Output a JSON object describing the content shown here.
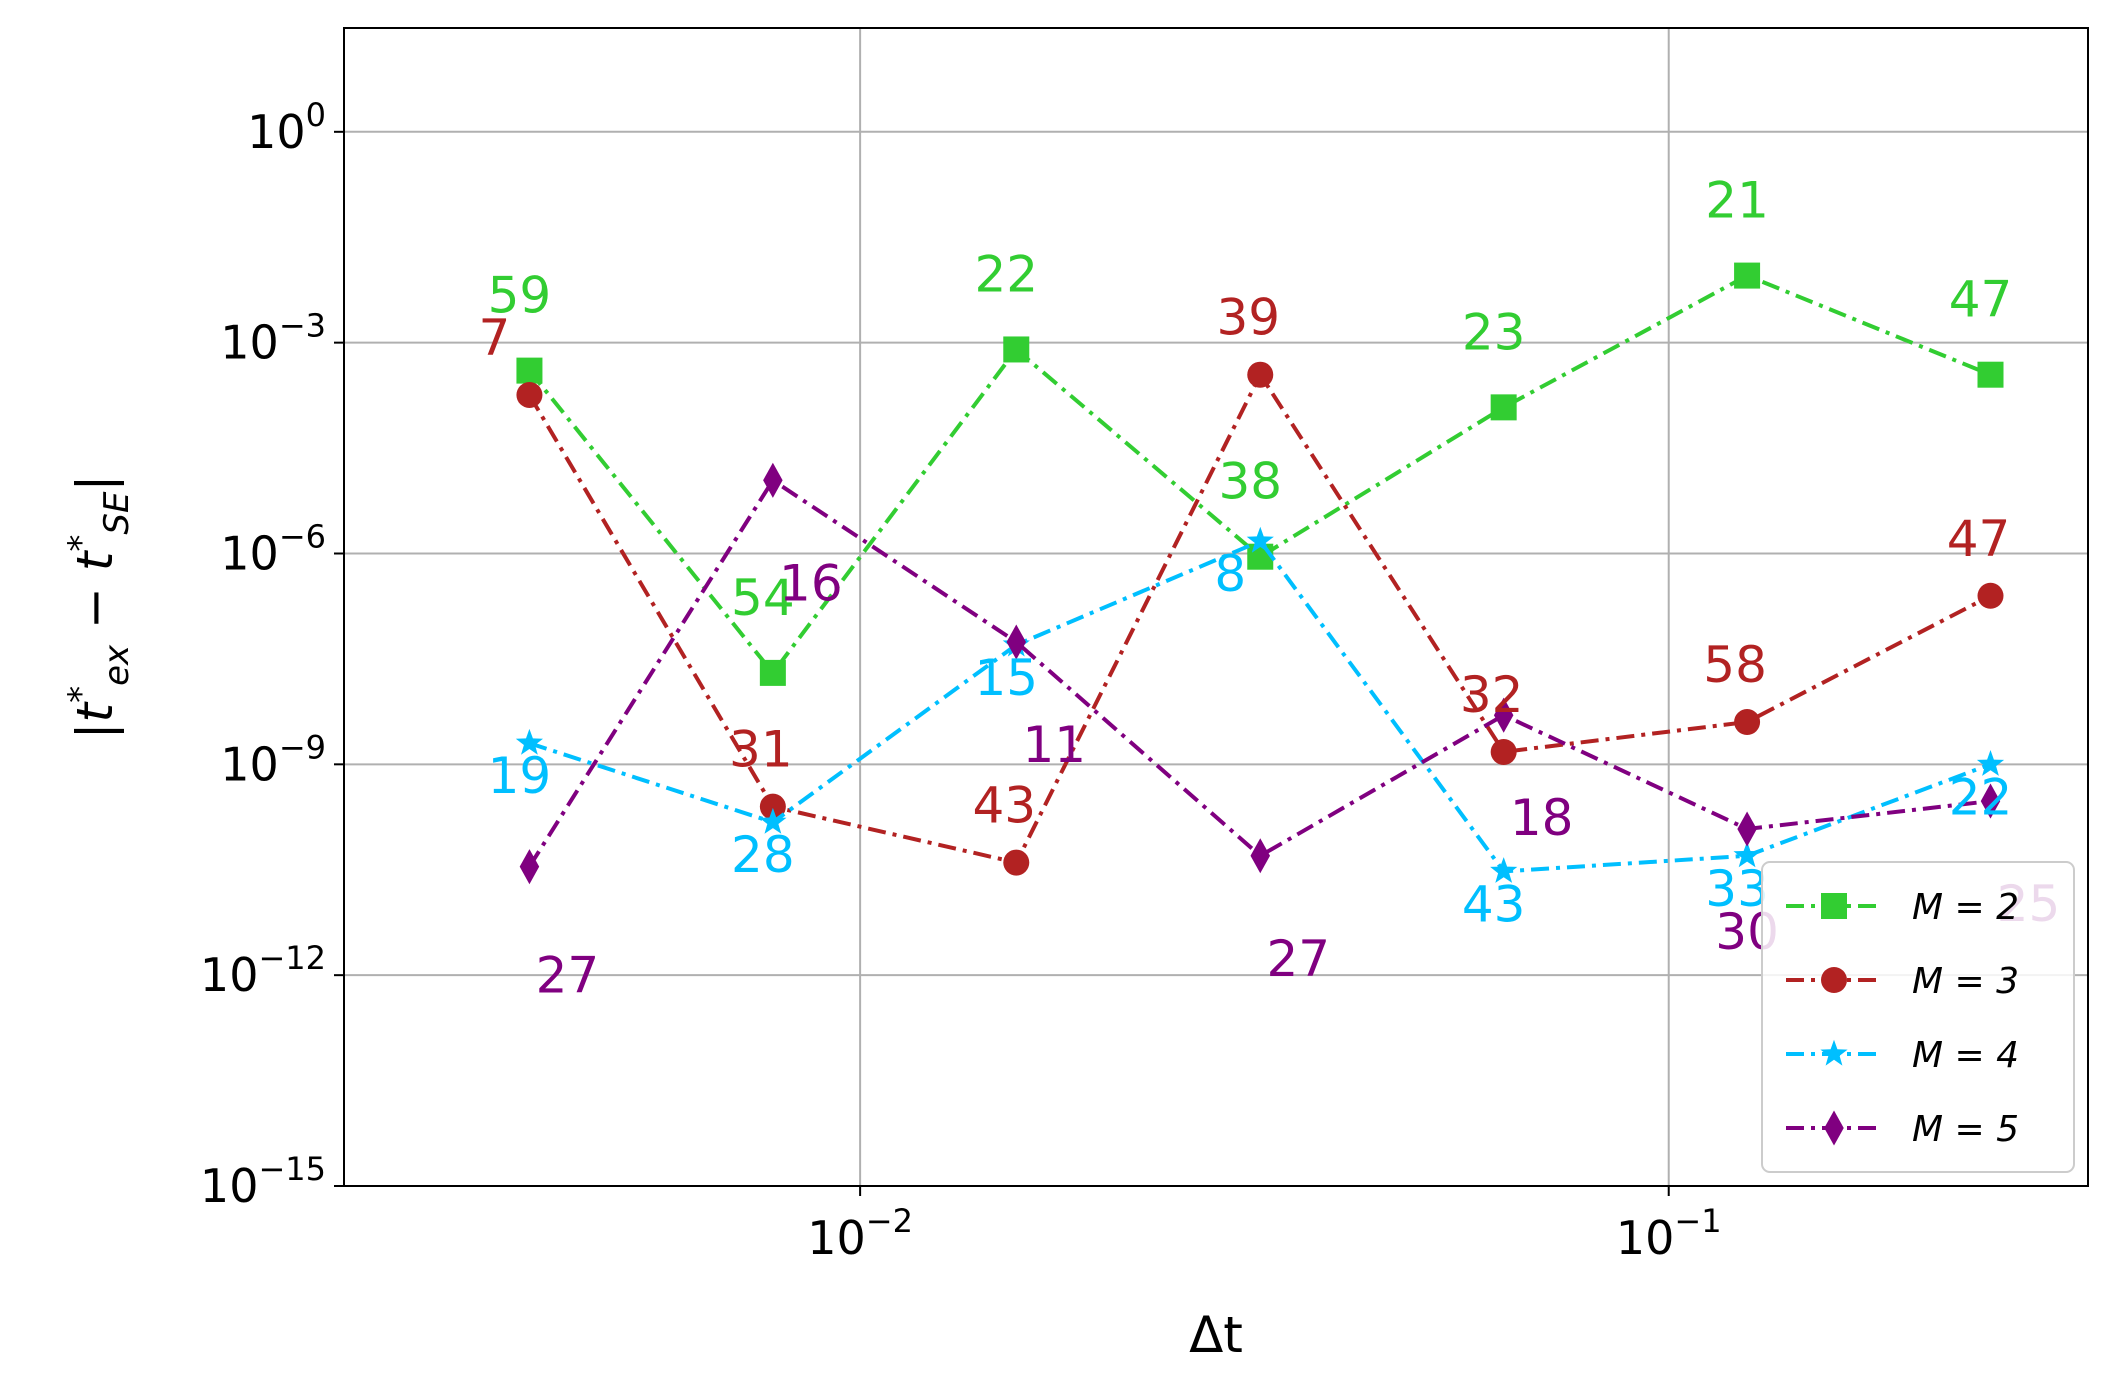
{
  "chart_data": {
    "type": "line",
    "xscale": "log",
    "yscale": "log",
    "xlabel": "Δt",
    "ylabel": "|t*ex − t*SE|",
    "xlim": [
      0.0023,
      0.33
    ],
    "ylim": [
      1e-15,
      30
    ],
    "grid": true,
    "legend_position": "bottom-right",
    "x_ticks": [
      {
        "value": 0.01,
        "base": "10",
        "exp": "−2"
      },
      {
        "value": 0.1,
        "base": "10",
        "exp": "−1"
      }
    ],
    "y_ticks": [
      {
        "value": 1,
        "base": "10",
        "exp": "0"
      },
      {
        "value": 0.001,
        "base": "10",
        "exp": "−3"
      },
      {
        "value": 1e-06,
        "base": "10",
        "exp": "−6"
      },
      {
        "value": 1e-09,
        "base": "10",
        "exp": "−9"
      },
      {
        "value": 1e-12,
        "base": "10",
        "exp": "−12"
      },
      {
        "value": 1e-15,
        "base": "10",
        "exp": "−15"
      }
    ],
    "x": [
      0.0039,
      0.0078,
      0.0156,
      0.03125,
      0.0625,
      0.125,
      0.25
    ],
    "series": [
      {
        "name": "M = 2",
        "color": "#32cd32",
        "marker": "square",
        "dash": "dashdot",
        "values": [
          0.0004,
          2e-08,
          0.0008,
          9e-07,
          0.00012,
          0.009,
          0.00035
        ],
        "labels": [
          "59",
          "54",
          "22",
          "38",
          "23",
          "21",
          "47"
        ],
        "label_offsets": [
          [
            -10,
            -58
          ],
          [
            -10,
            -58
          ],
          [
            -10,
            -58
          ],
          [
            -10,
            -58
          ],
          [
            -10,
            -58
          ],
          [
            -10,
            -58
          ],
          [
            -10,
            -58
          ]
        ]
      },
      {
        "name": "M = 3",
        "color": "#b22222",
        "marker": "circle",
        "dash": "dashdot",
        "values": [
          0.00018,
          2.5e-10,
          4e-11,
          0.00035,
          1.5e-09,
          4e-09,
          2.5e-07
        ],
        "labels": [
          "7",
          "31",
          "43",
          "39",
          "32",
          "58",
          "47"
        ],
        "labels_dy": [],
        "label_offsets": [
          [
            -35,
            -40
          ],
          [
            -12,
            -40
          ],
          [
            -12,
            -40
          ],
          [
            -12,
            -40
          ],
          [
            -12,
            -40
          ],
          [
            -12,
            -40
          ],
          [
            -12,
            -40
          ]
        ]
      },
      {
        "name": "M = 4",
        "color": "#00bfff",
        "marker": "star",
        "dash": "dashdot",
        "values": [
          2e-09,
          1.5e-10,
          5e-08,
          1.5e-06,
          3e-11,
          5e-11,
          1e-09
        ],
        "labels": [
          "19",
          "28",
          "15",
          "8",
          "43",
          "33",
          "22"
        ],
        "label_offsets": [
          [
            -10,
            50
          ],
          [
            -10,
            50
          ],
          [
            -10,
            50
          ],
          [
            -30,
            50
          ],
          [
            -10,
            50
          ],
          [
            -10,
            50
          ],
          [
            -10,
            50
          ]
        ]
      },
      {
        "name": "M = 5",
        "color": "#800080",
        "marker": "diamond",
        "dash": "dashdot",
        "values": [
          3.5e-11,
          1.1e-05,
          5.5e-08,
          5e-11,
          5e-09,
          1.2e-10,
          3e-10
        ],
        "labels": [
          "27",
          "16",
          "11",
          "27",
          "18",
          "30",
          "25"
        ],
        "label_offsets": [
          [
            38,
            126
          ],
          [
            38,
            120
          ],
          [
            38,
            120
          ],
          [
            38,
            120
          ],
          [
            38,
            120
          ],
          [
            0,
            120
          ],
          [
            38,
            120
          ]
        ]
      }
    ]
  }
}
